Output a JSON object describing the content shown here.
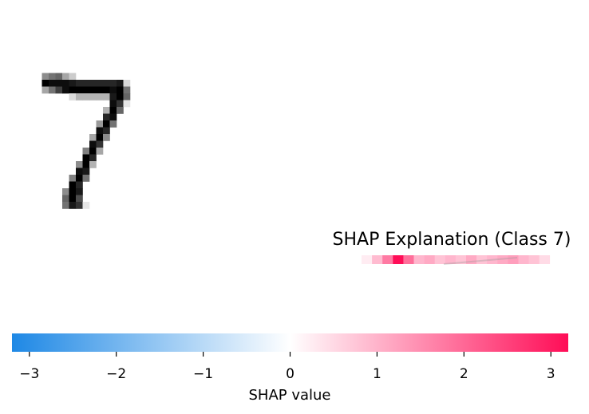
{
  "chart_data": [
    {
      "type": "heatmap",
      "role": "input-image",
      "grid_rows": 28,
      "grid_cols": 28,
      "pixels": [
        {
          "r": 7,
          "c": 5,
          "v": 0.45
        },
        {
          "r": 7,
          "c": 6,
          "v": 0.55
        },
        {
          "r": 7,
          "c": 7,
          "v": 0.6
        },
        {
          "r": 7,
          "c": 8,
          "v": 0.35
        },
        {
          "r": 7,
          "c": 9,
          "v": 0.2
        },
        {
          "r": 8,
          "c": 5,
          "v": 1.0
        },
        {
          "r": 8,
          "c": 6,
          "v": 0.95
        },
        {
          "r": 8,
          "c": 7,
          "v": 0.95
        },
        {
          "r": 8,
          "c": 8,
          "v": 0.95
        },
        {
          "r": 8,
          "c": 9,
          "v": 0.9
        },
        {
          "r": 8,
          "c": 10,
          "v": 0.85
        },
        {
          "r": 8,
          "c": 11,
          "v": 0.85
        },
        {
          "r": 8,
          "c": 12,
          "v": 0.85
        },
        {
          "r": 8,
          "c": 13,
          "v": 0.85
        },
        {
          "r": 8,
          "c": 14,
          "v": 0.85
        },
        {
          "r": 8,
          "c": 15,
          "v": 0.85
        },
        {
          "r": 8,
          "c": 16,
          "v": 0.9
        },
        {
          "r": 8,
          "c": 17,
          "v": 0.15
        },
        {
          "r": 9,
          "c": 5,
          "v": 0.35
        },
        {
          "r": 9,
          "c": 6,
          "v": 0.55
        },
        {
          "r": 9,
          "c": 7,
          "v": 0.75
        },
        {
          "r": 9,
          "c": 8,
          "v": 0.95
        },
        {
          "r": 9,
          "c": 9,
          "v": 1.0
        },
        {
          "r": 9,
          "c": 10,
          "v": 1.0
        },
        {
          "r": 9,
          "c": 11,
          "v": 1.0
        },
        {
          "r": 9,
          "c": 12,
          "v": 1.0
        },
        {
          "r": 9,
          "c": 13,
          "v": 1.0
        },
        {
          "r": 9,
          "c": 14,
          "v": 1.0
        },
        {
          "r": 9,
          "c": 15,
          "v": 0.95
        },
        {
          "r": 9,
          "c": 16,
          "v": 1.0
        },
        {
          "r": 9,
          "c": 17,
          "v": 0.55
        },
        {
          "r": 10,
          "c": 9,
          "v": 0.15
        },
        {
          "r": 10,
          "c": 10,
          "v": 0.3
        },
        {
          "r": 10,
          "c": 11,
          "v": 0.3
        },
        {
          "r": 10,
          "c": 12,
          "v": 0.3
        },
        {
          "r": 10,
          "c": 13,
          "v": 0.3
        },
        {
          "r": 10,
          "c": 14,
          "v": 0.3
        },
        {
          "r": 10,
          "c": 15,
          "v": 0.9
        },
        {
          "r": 10,
          "c": 16,
          "v": 1.0
        },
        {
          "r": 10,
          "c": 17,
          "v": 0.6
        },
        {
          "r": 11,
          "c": 15,
          "v": 0.95
        },
        {
          "r": 11,
          "c": 16,
          "v": 0.8
        },
        {
          "r": 11,
          "c": 17,
          "v": 0.1
        },
        {
          "r": 12,
          "c": 14,
          "v": 0.3
        },
        {
          "r": 12,
          "c": 15,
          "v": 1.0
        },
        {
          "r": 12,
          "c": 16,
          "v": 0.6
        },
        {
          "r": 13,
          "c": 14,
          "v": 0.85
        },
        {
          "r": 13,
          "c": 15,
          "v": 0.95
        },
        {
          "r": 14,
          "c": 13,
          "v": 0.4
        },
        {
          "r": 14,
          "c": 14,
          "v": 1.0
        },
        {
          "r": 14,
          "c": 15,
          "v": 0.55
        },
        {
          "r": 15,
          "c": 13,
          "v": 0.95
        },
        {
          "r": 15,
          "c": 14,
          "v": 0.85
        },
        {
          "r": 16,
          "c": 12,
          "v": 0.35
        },
        {
          "r": 16,
          "c": 13,
          "v": 1.0
        },
        {
          "r": 16,
          "c": 14,
          "v": 0.45
        },
        {
          "r": 17,
          "c": 12,
          "v": 0.95
        },
        {
          "r": 17,
          "c": 13,
          "v": 0.8
        },
        {
          "r": 18,
          "c": 11,
          "v": 0.5
        },
        {
          "r": 18,
          "c": 12,
          "v": 1.0
        },
        {
          "r": 18,
          "c": 13,
          "v": 0.35
        },
        {
          "r": 19,
          "c": 11,
          "v": 1.0
        },
        {
          "r": 19,
          "c": 12,
          "v": 0.85
        },
        {
          "r": 20,
          "c": 10,
          "v": 0.45
        },
        {
          "r": 20,
          "c": 11,
          "v": 1.0
        },
        {
          "r": 20,
          "c": 12,
          "v": 0.3
        },
        {
          "r": 21,
          "c": 10,
          "v": 0.95
        },
        {
          "r": 21,
          "c": 11,
          "v": 0.9
        },
        {
          "r": 22,
          "c": 9,
          "v": 0.5
        },
        {
          "r": 22,
          "c": 10,
          "v": 1.0
        },
        {
          "r": 22,
          "c": 11,
          "v": 0.55
        },
        {
          "r": 23,
          "c": 9,
          "v": 1.0
        },
        {
          "r": 23,
          "c": 10,
          "v": 0.85
        },
        {
          "r": 24,
          "c": 8,
          "v": 0.45
        },
        {
          "r": 24,
          "c": 9,
          "v": 1.0
        },
        {
          "r": 24,
          "c": 10,
          "v": 0.9
        },
        {
          "r": 25,
          "c": 8,
          "v": 0.6
        },
        {
          "r": 25,
          "c": 9,
          "v": 1.0
        },
        {
          "r": 25,
          "c": 10,
          "v": 0.7
        },
        {
          "r": 26,
          "c": 8,
          "v": 0.55
        },
        {
          "r": 26,
          "c": 9,
          "v": 0.9
        },
        {
          "r": 26,
          "c": 10,
          "v": 0.8
        },
        {
          "r": 26,
          "c": 11,
          "v": 0.1
        }
      ]
    },
    {
      "type": "heatmap",
      "role": "shap-explanation",
      "title": "SHAP Explanation (Class 7)",
      "cells": [
        {
          "c": 0,
          "v": 0.08
        },
        {
          "c": 1,
          "v": 0.28
        },
        {
          "c": 2,
          "v": 0.55
        },
        {
          "c": 3,
          "v": 1.0
        },
        {
          "c": 4,
          "v": 0.6
        },
        {
          "c": 5,
          "v": 0.3
        },
        {
          "c": 6,
          "v": 0.35
        },
        {
          "c": 7,
          "v": 0.25
        },
        {
          "c": 8,
          "v": 0.3
        },
        {
          "c": 9,
          "v": 0.25
        },
        {
          "c": 10,
          "v": 0.35
        },
        {
          "c": 11,
          "v": 0.25
        },
        {
          "c": 12,
          "v": 0.3
        },
        {
          "c": 13,
          "v": 0.35
        },
        {
          "c": 14,
          "v": 0.4
        },
        {
          "c": 15,
          "v": 0.3
        },
        {
          "c": 16,
          "v": 0.25
        },
        {
          "c": 17,
          "v": 0.15
        }
      ]
    },
    {
      "type": "colorbar",
      "xlabel": "SHAP value",
      "xlim": [
        -3.2,
        3.2
      ],
      "ticks": [
        -3,
        -2,
        -1,
        0,
        1,
        2,
        3
      ],
      "tick_labels": [
        "−3",
        "−2",
        "−1",
        "0",
        "1",
        "2",
        "3"
      ],
      "negative_color": "#1e88e5",
      "positive_color": "#ff0d57",
      "neutral_color": "#ffffff"
    }
  ],
  "colors": {
    "positive": "#ff0d57",
    "negative": "#1e88e5",
    "ink": "#000000",
    "background": "#ffffff"
  }
}
